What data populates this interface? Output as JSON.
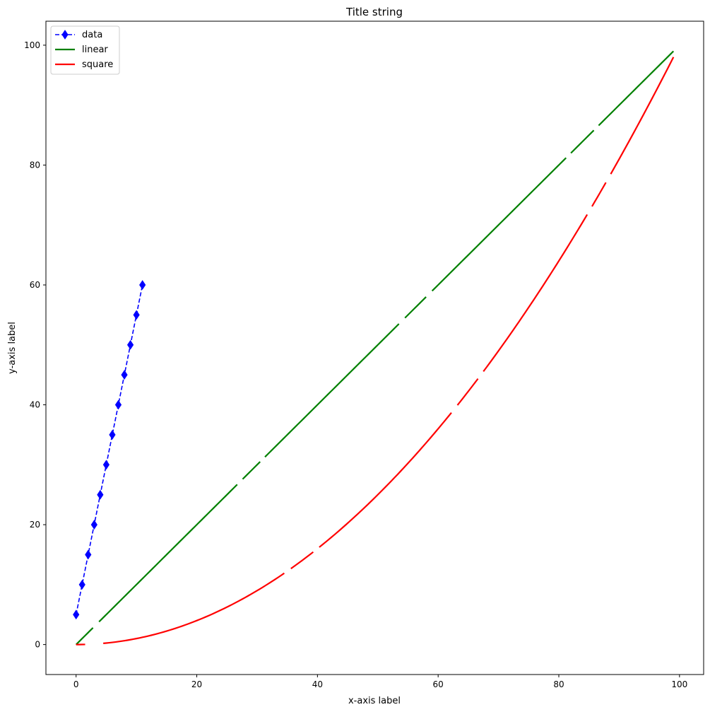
{
  "chart_data": {
    "type": "line",
    "title": "Title string",
    "xlabel": "x-axis label",
    "ylabel": "y-axis label",
    "xlim": [
      -5,
      104
    ],
    "ylim": [
      -5,
      104
    ],
    "x_ticks": [
      0,
      20,
      40,
      60,
      80,
      100
    ],
    "y_ticks": [
      0,
      20,
      40,
      60,
      80,
      100
    ],
    "grid": false,
    "legend_position": "top-left",
    "series": [
      {
        "name": "data",
        "color": "#0000ff",
        "line_style": "dashed",
        "marker": "thin-diamond",
        "x": [
          0,
          1,
          2,
          3,
          4,
          5,
          6,
          7,
          8,
          9,
          10,
          11
        ],
        "y": [
          5,
          10,
          15,
          20,
          25,
          30,
          35,
          40,
          45,
          50,
          55,
          60
        ]
      },
      {
        "name": "linear",
        "color": "#008000",
        "line_style": "solid",
        "function": "y = x",
        "x_range": [
          0,
          99
        ],
        "gaps_x": [
          [
            2.8,
            3.8
          ],
          [
            26.7,
            27.6
          ],
          [
            30.5,
            31.3
          ],
          [
            53.5,
            54.5
          ],
          [
            58,
            59
          ],
          [
            81.2,
            82
          ],
          [
            85.8,
            86.6
          ]
        ]
      },
      {
        "name": "square",
        "color": "#ff0000",
        "line_style": "solid",
        "function": "y = x^2 / 100",
        "x_range": [
          0,
          99
        ],
        "gaps_x": [
          [
            1.5,
            4.5
          ],
          [
            34.5,
            35.6
          ],
          [
            39.3,
            40.3
          ],
          [
            62.2,
            63.2
          ],
          [
            66.6,
            67.5
          ],
          [
            84.7,
            85.5
          ],
          [
            87.8,
            88.6
          ]
        ]
      }
    ]
  }
}
